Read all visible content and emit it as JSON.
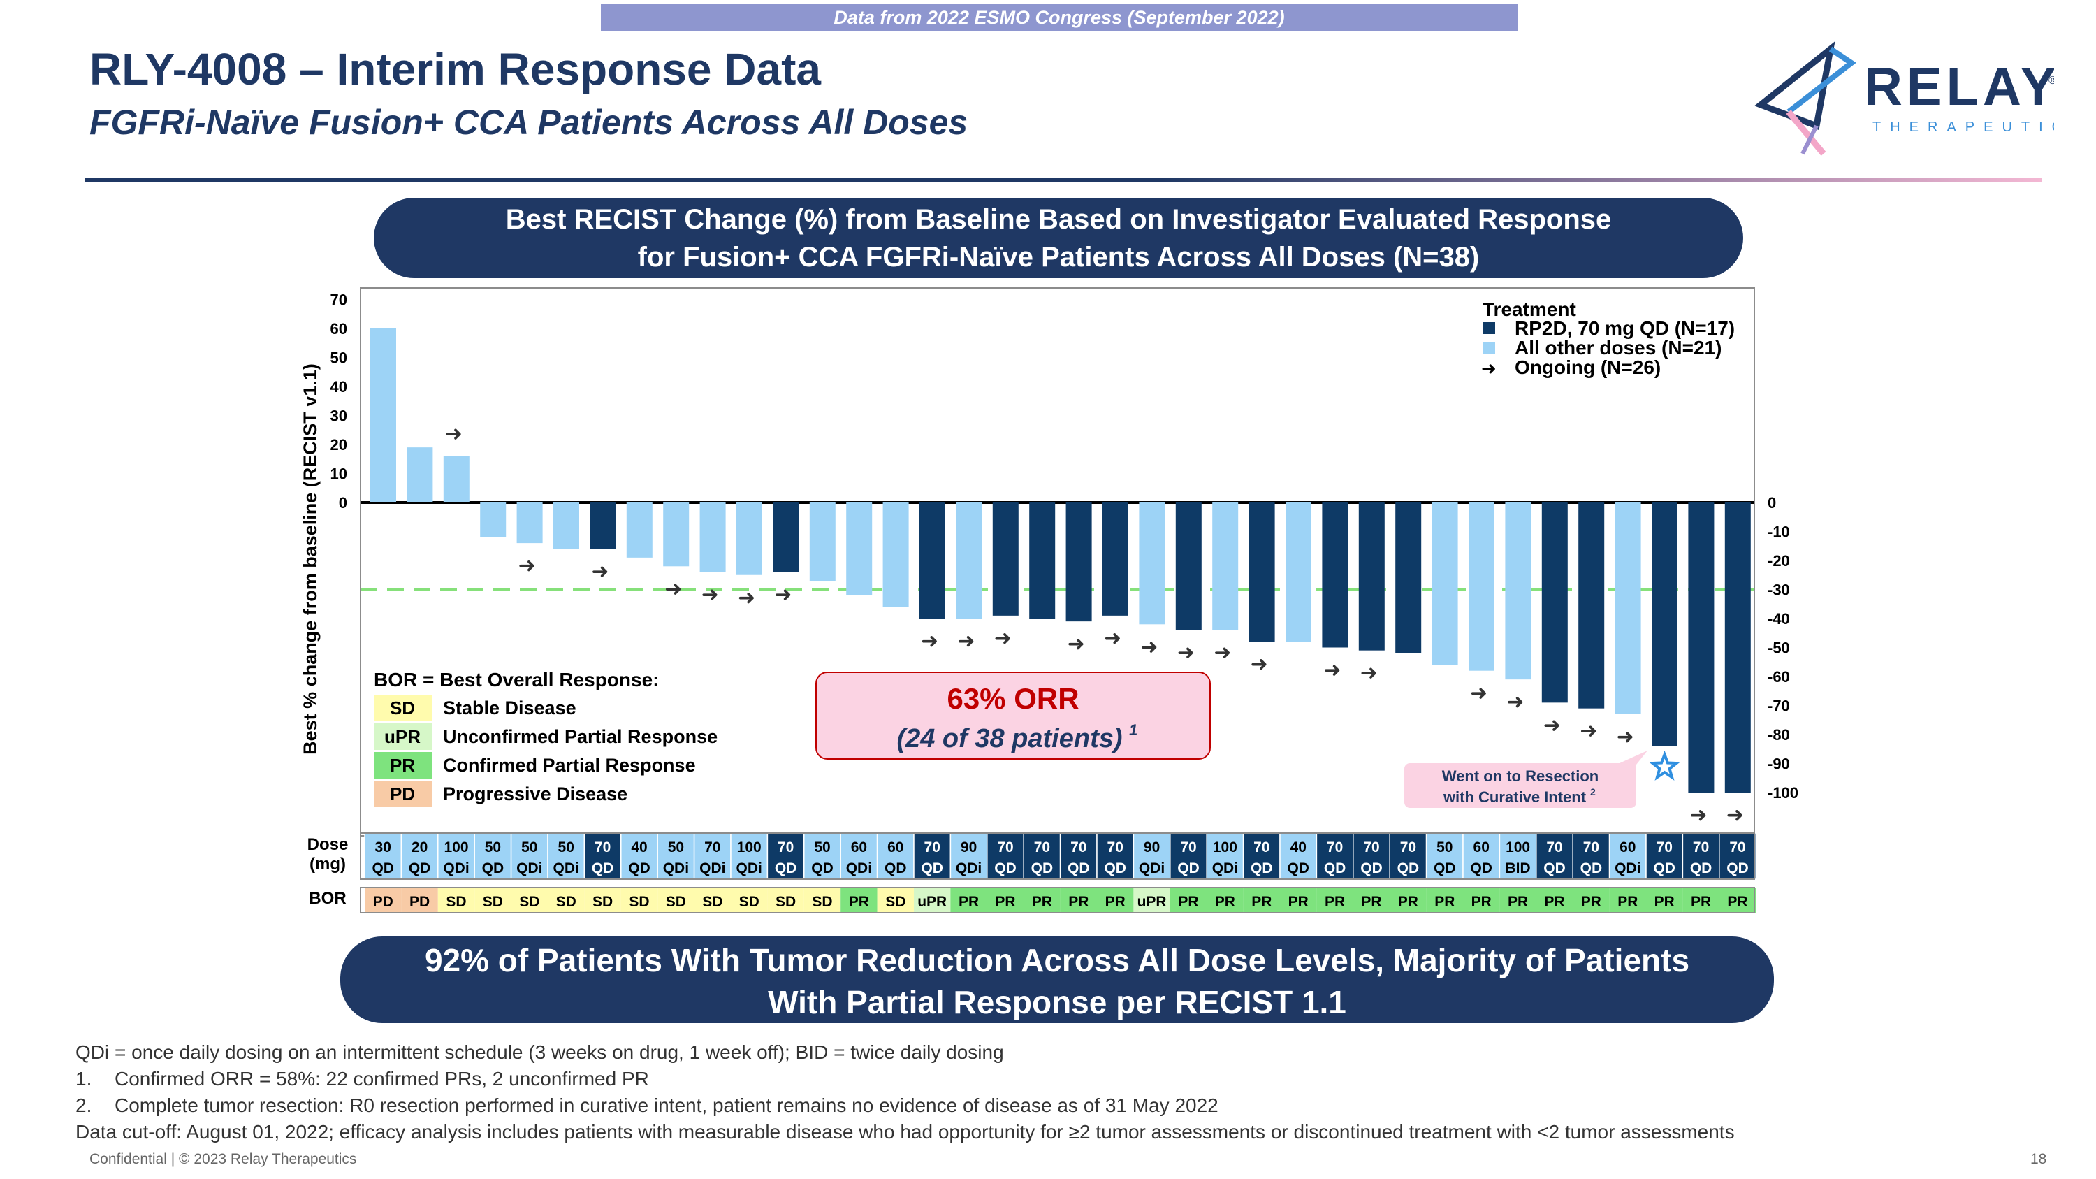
{
  "banner": "Data from 2022 ESMO Congress (September 2022)",
  "title": "RLY-4008 – Interim Response Data",
  "subtitle": "FGFRi-Naïve Fusion+ CCA Patients Across All Doses",
  "logo": {
    "name": "RELAY",
    "tagline": "THERAPEUTICS",
    "mark": "®"
  },
  "chart_header": {
    "line1": "Best RECIST Change (%) from Baseline Based on Investigator Evaluated Response",
    "line2": "for Fusion+ CCA FGFRi-Naïve Patients Across All Doses (N=38)"
  },
  "bottom_pill": {
    "line1": "92% of Patients With Tumor Reduction Across All Dose Levels, Majority of Patients",
    "line2": "With Partial Response per RECIST 1.1"
  },
  "footnotes": {
    "qdi": "QDi = once daily dosing on an intermittent schedule (3 weeks on drug, 1 week off); BID = twice daily dosing",
    "n1_num": "1.",
    "n1": "Confirmed ORR = 58%: 22 confirmed PRs, 2 unconfirmed PR",
    "n2_num": "2.",
    "n2": "Complete tumor resection: R0 resection performed in curative intent, patient remains no evidence of disease as of 31 May 2022",
    "cutoff": "Data cut-off: August 01, 2022; efficacy analysis includes patients with measurable disease who had opportunity for ≥2 tumor assessments or discontinued treatment with <2 tumor assessments",
    "confidential": "Confidential | © 2023 Relay Therapeutics",
    "page": "18"
  },
  "colors": {
    "navy": "#1f3864",
    "bar_rp2d": "#0e3a66",
    "bar_other": "#9dd3f6",
    "sd": "#fffbad",
    "upr": "#d6f7c8",
    "pr": "#7ee37e",
    "pd": "#f8cba6",
    "orr_box": "#fbd3e3",
    "orr_text": "#c00000",
    "threshold": "#86e07a"
  },
  "chart_data": {
    "type": "bar",
    "title": "Best RECIST Change (%) from Baseline Based on Investigator Evaluated Response for Fusion+ CCA FGFRi-Naïve Patients Across All Doses (N=38)",
    "ylabel": "Best % change from baseline (RECIST v1.1)",
    "ylim": [
      -100,
      70
    ],
    "left_ticks": [
      "70",
      "60",
      "50",
      "40",
      "30",
      "20",
      "10",
      "0"
    ],
    "right_ticks": [
      "0",
      "-10",
      "-20",
      "-30",
      "-40",
      "-50",
      "-60",
      "-70",
      "-80",
      "-90",
      "-100"
    ],
    "threshold": -30,
    "values": [
      60,
      19,
      16,
      -12,
      -14,
      -16,
      -16,
      -19,
      -22,
      -24,
      -25,
      -24,
      -27,
      -32,
      -36,
      -40,
      -40,
      -39,
      -40,
      -41,
      -39,
      -42,
      -44,
      -44,
      -48,
      -48,
      -50,
      -51,
      -52,
      -56,
      -58,
      -61,
      -69,
      -71,
      -73,
      -84,
      -100,
      -100
    ],
    "groups": [
      "o",
      "o",
      "o",
      "o",
      "o",
      "o",
      "r",
      "o",
      "o",
      "o",
      "o",
      "r",
      "o",
      "o",
      "o",
      "r",
      "o",
      "r",
      "r",
      "r",
      "r",
      "o",
      "r",
      "o",
      "r",
      "o",
      "r",
      "r",
      "r",
      "o",
      "o",
      "o",
      "r",
      "r",
      "o",
      "r",
      "r",
      "r"
    ],
    "ongoing": [
      false,
      false,
      true,
      false,
      true,
      false,
      true,
      false,
      true,
      true,
      true,
      true,
      false,
      false,
      false,
      true,
      true,
      true,
      false,
      true,
      true,
      true,
      true,
      true,
      true,
      false,
      true,
      true,
      false,
      false,
      true,
      true,
      true,
      true,
      true,
      false,
      true,
      true
    ],
    "dose": [
      "30",
      "20",
      "100",
      "50",
      "50",
      "50",
      "70",
      "40",
      "50",
      "70",
      "100",
      "70",
      "50",
      "60",
      "60",
      "70",
      "90",
      "70",
      "70",
      "70",
      "70",
      "90",
      "70",
      "100",
      "70",
      "40",
      "70",
      "70",
      "70",
      "50",
      "60",
      "100",
      "70",
      "70",
      "60",
      "70",
      "70",
      "70"
    ],
    "schedule": [
      "QD",
      "QD",
      "QDi",
      "QD",
      "QDi",
      "QDi",
      "QD",
      "QD",
      "QDi",
      "QDi",
      "QDi",
      "QD",
      "QD",
      "QDi",
      "QD",
      "QD",
      "QDi",
      "QD",
      "QD",
      "QD",
      "QD",
      "QDi",
      "QD",
      "QDi",
      "QD",
      "QD",
      "QD",
      "QD",
      "QD",
      "QD",
      "QD",
      "BID",
      "QD",
      "QD",
      "QDi",
      "QD",
      "QD",
      "QD"
    ],
    "bor": [
      "PD",
      "PD",
      "SD",
      "SD",
      "SD",
      "SD",
      "SD",
      "SD",
      "SD",
      "SD",
      "SD",
      "SD",
      "SD",
      "PR",
      "SD",
      "uPR",
      "PR",
      "PR",
      "PR",
      "PR",
      "PR",
      "uPR",
      "PR",
      "PR",
      "PR",
      "PR",
      "PR",
      "PR",
      "PR",
      "PR",
      "PR",
      "PR",
      "PR",
      "PR",
      "PR",
      "PR",
      "PR",
      "PR"
    ],
    "resection_index": 35,
    "legend": {
      "title": "Treatment",
      "rp2d": "RP2D, 70 mg QD (N=17)",
      "other": "All other doses (N=21)",
      "ongoing": "Ongoing (N=26)"
    },
    "bor_legend": {
      "title": "BOR = Best Overall Response:",
      "items": [
        {
          "code": "SD",
          "label": "Stable Disease"
        },
        {
          "code": "uPR",
          "label": "Unconfirmed Partial Response"
        },
        {
          "code": "PR",
          "label": "Confirmed Partial Response"
        },
        {
          "code": "PD",
          "label": "Progressive Disease"
        }
      ]
    },
    "orr": {
      "line1": "63% ORR",
      "line2": "(24 of 38 patients)",
      "sup": "1"
    },
    "resection_note": {
      "line1": "Went on to Resection",
      "line2": "with Curative Intent",
      "sup": "2"
    },
    "row_labels": {
      "dose1": "Dose",
      "dose2": "(mg)",
      "bor": "BOR"
    }
  }
}
